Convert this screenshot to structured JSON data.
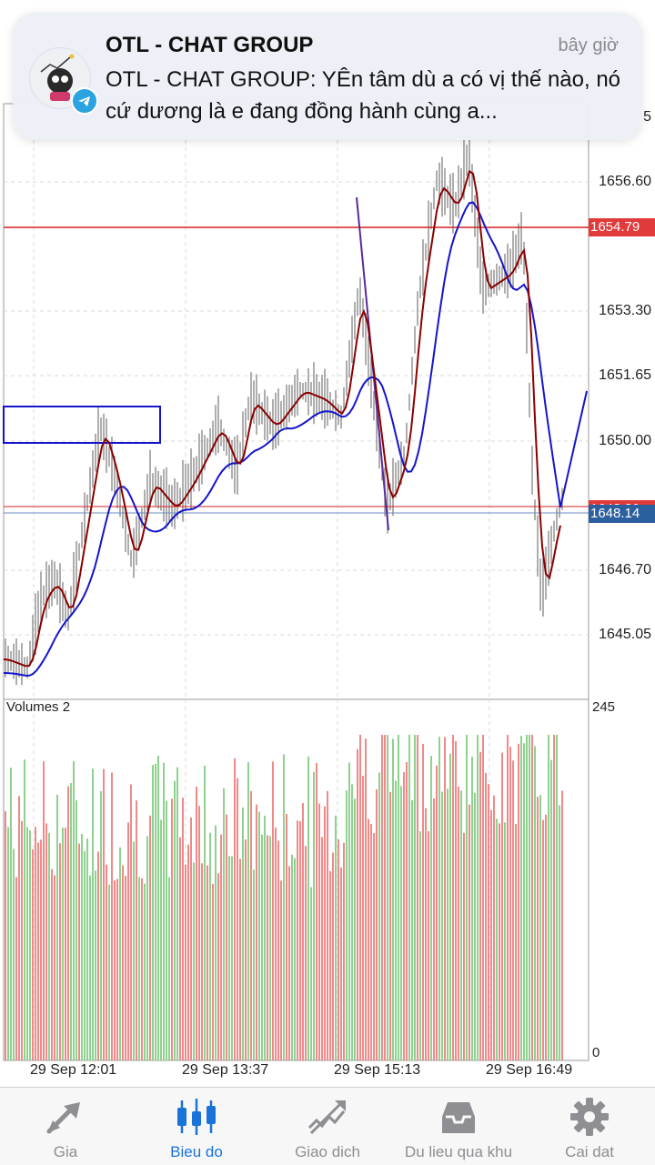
{
  "notification": {
    "title": "OTL - CHAT GROUP",
    "time": "bây giờ",
    "body": "OTL - CHAT GROUP: YÊn tâm dù a có vị thế nào, nó cứ dương là e đang đồng hành cùng a..."
  },
  "chart": {
    "price_labels": [
      "1656.60",
      "1653.30",
      "1651.65",
      "1650.00",
      "1646.70",
      "1645.05"
    ],
    "top_partial_label": "5",
    "tag_red": "1654.79",
    "tag_blue": "1648.14",
    "tag_red_hidden": "1648.30",
    "volumes_title": "Volumes 2",
    "volumes_max": "245",
    "volumes_min": "0",
    "time_labels": [
      "29 Sep 12:01",
      "29 Sep 13:37",
      "29 Sep 15:13",
      "29 Sep 16:49"
    ],
    "colors": {
      "candles": "#8c8c8c",
      "ma_fast": "#8b0000",
      "ma_slow": "#1515cc",
      "level_line": "#d42020",
      "trend_line": "#5a2a9a",
      "volume_up": "#8fd18f",
      "volume_down": "#f08a8a",
      "tag_red": "#e03a3a",
      "tag_blue": "#2c5f9e",
      "active_tab": "#1a73d9"
    }
  },
  "tabs": [
    {
      "label": "Gia",
      "icon": "price-trend-icon",
      "active": false
    },
    {
      "label": "Bieu do",
      "icon": "candlestick-icon",
      "active": true
    },
    {
      "label": "Giao dich",
      "icon": "trade-icon",
      "active": false
    },
    {
      "label": "Du lieu qua khu",
      "icon": "inbox-icon",
      "active": false
    },
    {
      "label": "Cai dat",
      "icon": "gear-icon",
      "active": false
    }
  ]
}
